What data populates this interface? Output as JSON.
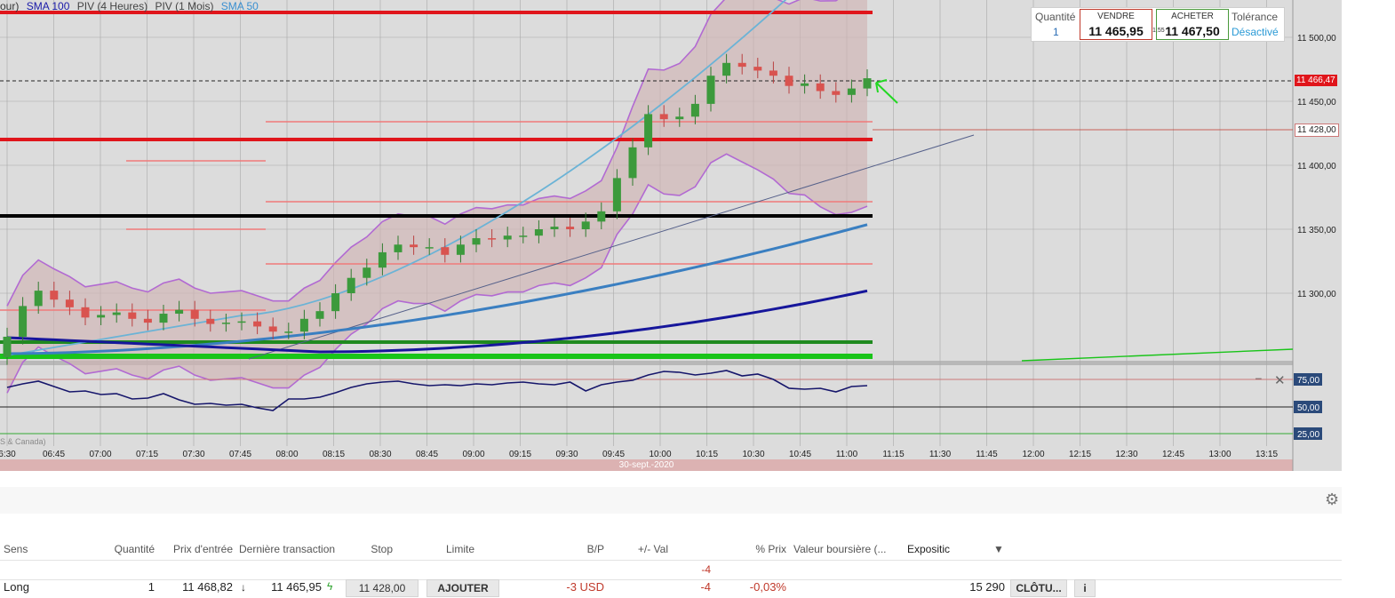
{
  "chart": {
    "indicators": [
      {
        "label": "our)",
        "color": "#333333"
      },
      {
        "label": "SMA 100",
        "color": "#1a1aa8"
      },
      {
        "label": "PIV (4 Heures)",
        "color": "#444444"
      },
      {
        "label": "PIV (1 Mois)",
        "color": "#444444"
      },
      {
        "label": "SMA 50",
        "color": "#3a8fd0"
      }
    ],
    "price_axis": [
      "11 500,00",
      "11 450,00",
      "11 400,00",
      "11 350,00",
      "11 300,00"
    ],
    "current_price_tag": "11 466,47",
    "stop_price_tag": "11 428,00",
    "rsi_axis": [
      "75,00",
      "50,00",
      "25,00"
    ],
    "time_axis": [
      "6:30",
      "06:45",
      "07:00",
      "07:15",
      "07:30",
      "07:45",
      "08:00",
      "08:15",
      "08:30",
      "08:45",
      "09:00",
      "09:15",
      "09:30",
      "09:45",
      "10:00",
      "10:15",
      "10:30",
      "10:45",
      "11:00",
      "11:15",
      "11:30",
      "11:45",
      "12:00",
      "12:15",
      "12:30",
      "12:45",
      "13:00",
      "13:15"
    ],
    "date_label": "30-sept.-2020",
    "timezone_note": "S & Canada)",
    "rsi_close": "✕",
    "rsi_minimize": "–",
    "colors": {
      "up": "#3c9a3c",
      "down": "#d9534f",
      "resistance": "#e0151b",
      "support": "#19c419",
      "pivot": "#000000",
      "upper_band": "#b26ad2",
      "sma50": "#6bb3d6",
      "sma100": "#3a7fc1",
      "sma200": "#16169b"
    }
  },
  "order_panel": {
    "quantity_label": "Quantité",
    "quantity_value": "1",
    "sell_label": "VENDRE",
    "sell_price": "11 465,95",
    "spread": "1,55",
    "buy_label": "ACHETER",
    "buy_price": "11 467,50",
    "tolerance_label": "Tolérance",
    "tolerance_value": "Désactivé"
  },
  "positions": {
    "columns": {
      "direction": "Sens",
      "quantity": "Quantité",
      "entry_price": "Prix d'entrée",
      "last_trade": "Dernière transaction",
      "stop": "Stop",
      "limit": "Limite",
      "pl": "B/P",
      "value_change": "+/- Val",
      "pct_price": "% Prix",
      "market_value": "Valeur boursière (...",
      "exposure": "Expositic"
    },
    "sort_icon": "▼",
    "summary_value_change": "-4",
    "row": {
      "direction": "Long",
      "quantity": "1",
      "entry_price": "11 468,82",
      "last_trade": "11 465,95",
      "stop": "11 428,00",
      "add_button": "AJOUTER",
      "pl": "-3 USD",
      "value_change": "-4",
      "pct_price": "-0,03%",
      "exposure": "15 290",
      "close_button": "CLÔTU...",
      "info_button": "i"
    }
  }
}
